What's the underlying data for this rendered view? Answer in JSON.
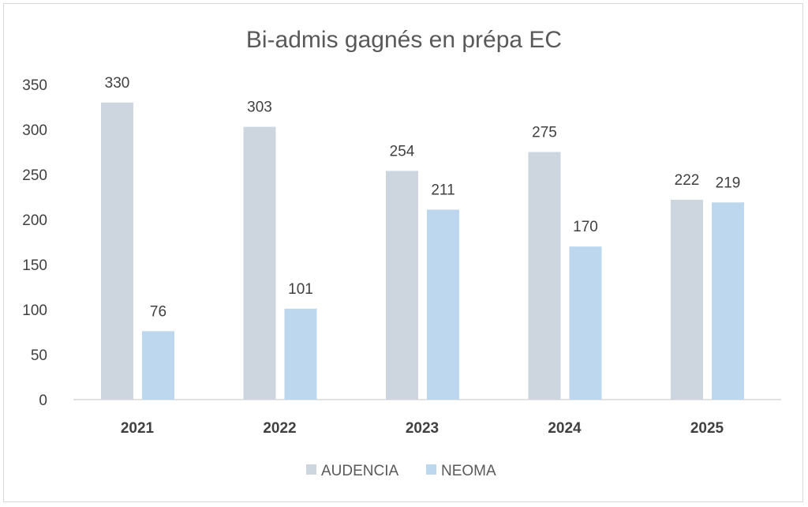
{
  "chart_data": {
    "type": "bar",
    "title": "Bi-admis gagnés en prépa EC",
    "xlabel": "",
    "ylabel": "",
    "categories": [
      "2021",
      "2022",
      "2023",
      "2024",
      "2025"
    ],
    "series": [
      {
        "name": "AUDENCIA",
        "color": "#cdd5df",
        "values": [
          330,
          303,
          254,
          275,
          222
        ]
      },
      {
        "name": "NEOMA",
        "color": "#bdd7ee",
        "values": [
          76,
          101,
          211,
          170,
          219
        ]
      }
    ],
    "ylim": [
      0,
      350
    ],
    "yticks": [
      0,
      50,
      100,
      150,
      200,
      250,
      300,
      350
    ],
    "grid": false,
    "legend": "bottom",
    "data_labels": true
  }
}
